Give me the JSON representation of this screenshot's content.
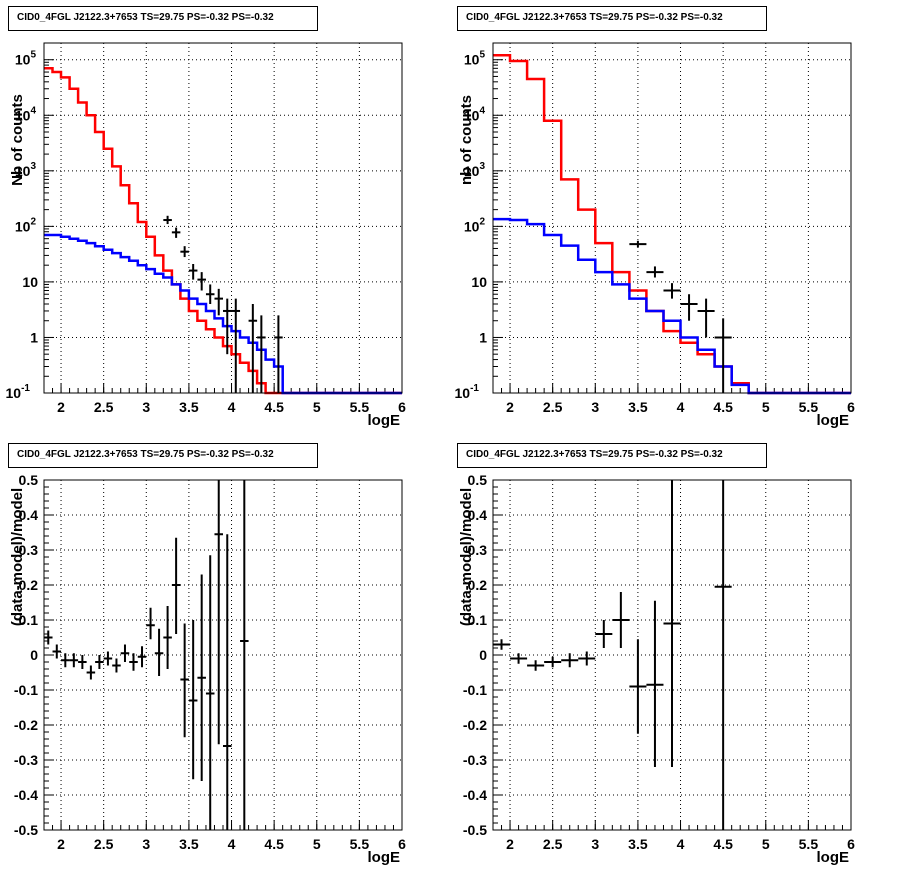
{
  "panels": [
    {
      "title": "CID0_4FGL J2122.3+7653 TS=29.75 PS=-0.32 PS=-0.32",
      "xlabel": "logE",
      "ylabel": "Nb of counts"
    },
    {
      "title": "CID0_4FGL J2122.3+7653 TS=29.75 PS=-0.32 PS=-0.32",
      "xlabel": "logE",
      "ylabel": "nb of counts"
    },
    {
      "title": "CID0_4FGL J2122.3+7653 TS=29.75 PS=-0.32 PS=-0.32",
      "xlabel": "logE",
      "ylabel": "(data-model)/model"
    },
    {
      "title": "CID0_4FGL J2122.3+7653 TS=29.75 PS=-0.32 PS=-0.32",
      "xlabel": "logE",
      "ylabel": "(data-model)/model"
    }
  ],
  "colors": {
    "model_total": "#ff0000",
    "model_background": "#0000ff",
    "data": "#000000"
  },
  "chart_data": [
    {
      "type": "line",
      "yscale": "log",
      "xlim": [
        1.8,
        6.0
      ],
      "ylim": [
        0.1,
        200000
      ],
      "grid": true,
      "xticks": [
        "2",
        "2.5",
        "3",
        "3.5",
        "4",
        "4.5",
        "5",
        "5.5",
        "6"
      ],
      "yticks": [
        "10^-1",
        "1",
        "10",
        "10^2",
        "10^3",
        "10^4",
        "10^5"
      ],
      "bin_width": 0.1,
      "bin_edges_start": 1.8,
      "series": [
        {
          "values": [
            70000,
            60000,
            48000,
            30000,
            17000,
            10000,
            5000,
            2500,
            1200,
            550,
            260,
            120,
            65,
            30,
            16,
            9,
            5,
            3,
            2,
            1.4,
            1.0,
            0.7,
            0.5,
            0.35,
            0.25,
            0.15,
            0.1,
            0.1,
            0.1,
            0.1,
            0.1,
            0.1,
            0.1,
            0.1,
            0.1,
            0.1,
            0.1,
            0.1,
            0.1,
            0.1,
            0.1,
            0.1
          ]
        },
        {
          "values": [
            70,
            70,
            65,
            60,
            55,
            50,
            44,
            38,
            33,
            28,
            24,
            20,
            17,
            14,
            12,
            9,
            7,
            5,
            4,
            3,
            2.2,
            1.6,
            1.3,
            1.0,
            0.8,
            0.6,
            0.4,
            0.3,
            0.1,
            0.1,
            0.1,
            0.1,
            0.1,
            0.1,
            0.1,
            0.1,
            0.1,
            0.1,
            0.1,
            0.1,
            0.1,
            0.1
          ]
        }
      ],
      "points": [
        {
          "x": 3.25,
          "y": 130,
          "lo": 110,
          "hi": 155
        },
        {
          "x": 3.35,
          "y": 78,
          "lo": 62,
          "hi": 95
        },
        {
          "x": 3.45,
          "y": 35,
          "lo": 28,
          "hi": 44
        },
        {
          "x": 3.55,
          "y": 16,
          "lo": 11,
          "hi": 21
        },
        {
          "x": 3.65,
          "y": 11,
          "lo": 7,
          "hi": 15
        },
        {
          "x": 3.75,
          "y": 6,
          "lo": 4,
          "hi": 9
        },
        {
          "x": 3.85,
          "y": 5,
          "lo": 2.5,
          "hi": 7.5
        },
        {
          "x": 3.95,
          "y": 3,
          "lo": 0.5,
          "hi": 5
        },
        {
          "x": 4.05,
          "y": 3,
          "lo": 0.1,
          "hi": 5
        },
        {
          "x": 4.25,
          "y": 2,
          "lo": 0.1,
          "hi": 4
        },
        {
          "x": 4.35,
          "y": 1,
          "lo": 0.1,
          "hi": 2.5
        },
        {
          "x": 4.55,
          "y": 1,
          "lo": 0.1,
          "hi": 2.5
        }
      ]
    },
    {
      "type": "line",
      "yscale": "log",
      "xlim": [
        1.8,
        6.0
      ],
      "ylim": [
        0.1,
        200000
      ],
      "grid": true,
      "xticks": [
        "2",
        "2.5",
        "3",
        "3.5",
        "4",
        "4.5",
        "5",
        "5.5",
        "6"
      ],
      "yticks": [
        "10^-1",
        "1",
        "10",
        "10^2",
        "10^3",
        "10^4",
        "10^5"
      ],
      "bin_width": 0.2,
      "bin_edges_start": 1.8,
      "series": [
        {
          "values": [
            120000,
            95000,
            45000,
            8000,
            700,
            200,
            50,
            15,
            7,
            3,
            1.3,
            0.8,
            0.5,
            0.3,
            0.15,
            0.1,
            0.1,
            0.1,
            0.1,
            0.1,
            0.1
          ]
        },
        {
          "values": [
            135,
            130,
            110,
            70,
            45,
            25,
            15,
            9,
            5,
            3,
            2,
            1.0,
            0.6,
            0.3,
            0.14,
            0.1,
            0.1,
            0.1,
            0.1,
            0.1,
            0.1
          ]
        }
      ],
      "points": [
        {
          "x": 3.5,
          "y": 48,
          "lo": 42,
          "hi": 55
        },
        {
          "x": 3.7,
          "y": 15,
          "lo": 12,
          "hi": 19
        },
        {
          "x": 3.9,
          "y": 7,
          "lo": 5,
          "hi": 9.5
        },
        {
          "x": 4.1,
          "y": 4,
          "lo": 2,
          "hi": 6
        },
        {
          "x": 4.3,
          "y": 3,
          "lo": 1,
          "hi": 5
        },
        {
          "x": 4.5,
          "y": 1,
          "lo": 0.1,
          "hi": 2.2
        }
      ]
    },
    {
      "type": "scatter",
      "xlim": [
        1.8,
        6.0
      ],
      "ylim": [
        -0.5,
        0.5
      ],
      "grid": true,
      "xticks": [
        "2",
        "2.5",
        "3",
        "3.5",
        "4",
        "4.5",
        "5",
        "5.5",
        "6"
      ],
      "yticks": [
        "-0.5",
        "-0.4",
        "-0.3",
        "-0.2",
        "-0.1",
        "0",
        "0.1",
        "0.2",
        "0.3",
        "0.4",
        "0.5"
      ],
      "bin_width": 0.1,
      "points": [
        {
          "x": 1.85,
          "y": 0.05,
          "lo": 0.03,
          "hi": 0.07
        },
        {
          "x": 1.95,
          "y": 0.01,
          "lo": -0.01,
          "hi": 0.03
        },
        {
          "x": 2.05,
          "y": -0.015,
          "lo": -0.035,
          "hi": 0.005
        },
        {
          "x": 2.15,
          "y": -0.015,
          "lo": -0.035,
          "hi": 0.005
        },
        {
          "x": 2.25,
          "y": -0.02,
          "lo": -0.04,
          "hi": 0.0
        },
        {
          "x": 2.35,
          "y": -0.05,
          "lo": -0.07,
          "hi": -0.03
        },
        {
          "x": 2.45,
          "y": -0.02,
          "lo": -0.04,
          "hi": 0.0
        },
        {
          "x": 2.55,
          "y": -0.01,
          "lo": -0.03,
          "hi": 0.01
        },
        {
          "x": 2.65,
          "y": -0.03,
          "lo": -0.05,
          "hi": -0.01
        },
        {
          "x": 2.75,
          "y": 0.005,
          "lo": -0.02,
          "hi": 0.03
        },
        {
          "x": 2.85,
          "y": -0.02,
          "lo": -0.045,
          "hi": 0.005
        },
        {
          "x": 2.95,
          "y": -0.005,
          "lo": -0.035,
          "hi": 0.025
        },
        {
          "x": 3.05,
          "y": 0.085,
          "lo": 0.045,
          "hi": 0.135
        },
        {
          "x": 3.15,
          "y": 0.005,
          "lo": -0.06,
          "hi": 0.075
        },
        {
          "x": 3.25,
          "y": 0.05,
          "lo": -0.04,
          "hi": 0.14
        },
        {
          "x": 3.35,
          "y": 0.2,
          "lo": 0.06,
          "hi": 0.335
        },
        {
          "x": 3.45,
          "y": -0.07,
          "lo": -0.235,
          "hi": 0.09
        },
        {
          "x": 3.55,
          "y": -0.13,
          "lo": -0.355,
          "hi": 0.1
        },
        {
          "x": 3.65,
          "y": -0.065,
          "lo": -0.36,
          "hi": 0.23
        },
        {
          "x": 3.75,
          "y": -0.11,
          "lo": -0.5,
          "hi": 0.285
        },
        {
          "x": 3.85,
          "y": 0.345,
          "lo": -0.255,
          "hi": 0.5
        },
        {
          "x": 3.95,
          "y": -0.26,
          "lo": -0.5,
          "hi": 0.345
        },
        {
          "x": 4.15,
          "y": 0.04,
          "lo": -0.5,
          "hi": 0.5
        }
      ]
    },
    {
      "type": "scatter",
      "xlim": [
        1.8,
        6.0
      ],
      "ylim": [
        -0.5,
        0.5
      ],
      "grid": true,
      "xticks": [
        "2",
        "2.5",
        "3",
        "3.5",
        "4",
        "4.5",
        "5",
        "5.5",
        "6"
      ],
      "yticks": [
        "-0.5",
        "-0.4",
        "-0.3",
        "-0.2",
        "-0.1",
        "0",
        "0.1",
        "0.2",
        "0.3",
        "0.4",
        "0.5"
      ],
      "bin_width": 0.2,
      "points": [
        {
          "x": 1.9,
          "y": 0.03,
          "lo": 0.015,
          "hi": 0.045
        },
        {
          "x": 2.1,
          "y": -0.01,
          "lo": -0.025,
          "hi": 0.005
        },
        {
          "x": 2.3,
          "y": -0.03,
          "lo": -0.045,
          "hi": -0.015
        },
        {
          "x": 2.5,
          "y": -0.02,
          "lo": -0.035,
          "hi": -0.005
        },
        {
          "x": 2.7,
          "y": -0.015,
          "lo": -0.035,
          "hi": 0.005
        },
        {
          "x": 2.9,
          "y": -0.01,
          "lo": -0.03,
          "hi": 0.01
        },
        {
          "x": 3.1,
          "y": 0.06,
          "lo": 0.02,
          "hi": 0.1
        },
        {
          "x": 3.3,
          "y": 0.1,
          "lo": 0.02,
          "hi": 0.18
        },
        {
          "x": 3.5,
          "y": -0.09,
          "lo": -0.225,
          "hi": 0.045
        },
        {
          "x": 3.7,
          "y": -0.085,
          "lo": -0.32,
          "hi": 0.155
        },
        {
          "x": 3.9,
          "y": 0.09,
          "lo": -0.32,
          "hi": 0.5
        },
        {
          "x": 4.5,
          "y": 0.195,
          "lo": -0.5,
          "hi": 0.5
        }
      ]
    }
  ]
}
